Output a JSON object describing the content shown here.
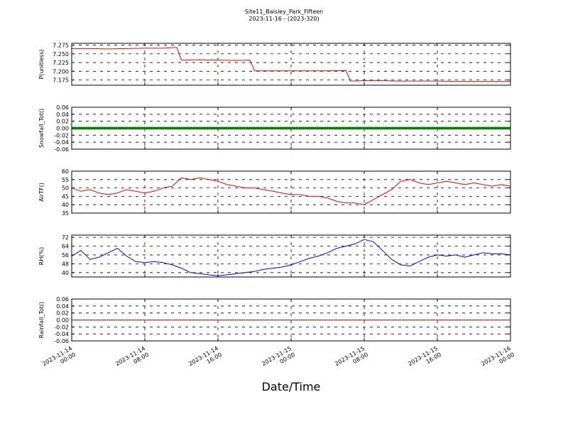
{
  "figure": {
    "title_line1": "Site11_Baisley_Park_Fifteen",
    "title_line2": "2023-11-16 - (2023-320)",
    "xlabel": "Date/Time",
    "xticks": [
      {
        "line1": "2023-11-14",
        "line2": "00:00"
      },
      {
        "line1": "2023-11-14",
        "line2": "08:00"
      },
      {
        "line1": "2023-11-14",
        "line2": "16:00"
      },
      {
        "line1": "2023-11-15",
        "line2": "00:00"
      },
      {
        "line1": "2023-11-15",
        "line2": "08:00"
      },
      {
        "line1": "2023-11-15",
        "line2": "16:00"
      },
      {
        "line1": "2023-11-16",
        "line2": "00:00"
      }
    ]
  },
  "chart_data": [
    {
      "type": "line",
      "ylabel": "P(unitless)",
      "color": "#ff0000",
      "marker": "none",
      "ylim": [
        7.16,
        7.28
      ],
      "yticks": [
        "7.175",
        "7.200",
        "7.225",
        "7.250",
        "7.275"
      ],
      "yticks_values": [
        7.175,
        7.2,
        7.225,
        7.25,
        7.275
      ],
      "xlim_hours": [
        0,
        48
      ],
      "x_hours": [
        0,
        2,
        4,
        6,
        8,
        10,
        11.5,
        12,
        14,
        16,
        18,
        19.5,
        20,
        22,
        24,
        26,
        28,
        30,
        30.5,
        32,
        34,
        36,
        38,
        40,
        42,
        44,
        46,
        48
      ],
      "values": [
        7.265,
        7.265,
        7.264,
        7.265,
        7.266,
        7.266,
        7.268,
        7.232,
        7.233,
        7.232,
        7.231,
        7.232,
        7.201,
        7.201,
        7.201,
        7.201,
        7.201,
        7.202,
        7.172,
        7.173,
        7.173,
        7.172,
        7.172,
        7.172,
        7.171,
        7.171,
        7.171,
        7.171
      ]
    },
    {
      "type": "line",
      "ylabel": "Snowfall_Tot()",
      "color": "#008000",
      "marker": "circle",
      "ylim": [
        -0.06,
        0.06
      ],
      "yticks": [
        "-0.06",
        "-0.04",
        "-0.02",
        "0.00",
        "0.02",
        "0.04",
        "0.06"
      ],
      "yticks_values": [
        -0.06,
        -0.04,
        -0.02,
        0,
        0.02,
        0.04,
        0.06
      ],
      "xlim_hours": [
        0,
        48
      ],
      "x_hours": [
        0,
        48
      ],
      "values": [
        0,
        0
      ]
    },
    {
      "type": "line",
      "ylabel": "AirTF()",
      "color": "#ff0000",
      "marker": "none",
      "ylim": [
        35,
        60
      ],
      "yticks": [
        "35",
        "40",
        "45",
        "50",
        "55",
        "60"
      ],
      "yticks_values": [
        35,
        40,
        45,
        50,
        55,
        60
      ],
      "xlim_hours": [
        0,
        48
      ],
      "x_hours": [
        0,
        1,
        2,
        3,
        4,
        5,
        6,
        7,
        8,
        9,
        10,
        11,
        12,
        13,
        14,
        15,
        16,
        17,
        18,
        19,
        20,
        21,
        22,
        23,
        24,
        25,
        26,
        27,
        28,
        29,
        30,
        31,
        32,
        33,
        34,
        35,
        36,
        37,
        38,
        39,
        40,
        41,
        42,
        43,
        44,
        45,
        46,
        47,
        48
      ],
      "values": [
        50,
        48,
        49,
        47,
        46,
        47,
        49,
        48,
        47,
        48,
        50,
        51,
        56,
        55,
        56,
        55,
        54,
        52,
        51,
        50,
        50,
        49,
        48,
        47,
        46,
        46,
        45,
        45,
        44,
        42,
        41,
        41,
        40,
        43,
        46,
        49,
        54,
        55,
        53,
        52,
        53,
        54,
        53,
        52,
        53,
        52,
        51,
        52,
        51
      ]
    },
    {
      "type": "line",
      "ylabel": "RH(%)",
      "color": "#0000ff",
      "marker": "none",
      "ylim": [
        36,
        74
      ],
      "yticks": [
        "40",
        "48",
        "56",
        "64",
        "72"
      ],
      "yticks_values": [
        40,
        48,
        56,
        64,
        72
      ],
      "xlim_hours": [
        0,
        48
      ],
      "x_hours": [
        0,
        1,
        2,
        3,
        4,
        5,
        6,
        7,
        8,
        9,
        10,
        11,
        12,
        13,
        14,
        15,
        16,
        17,
        18,
        19,
        20,
        21,
        22,
        23,
        24,
        25,
        26,
        27,
        28,
        29,
        30,
        31,
        32,
        33,
        34,
        35,
        36,
        37,
        38,
        39,
        40,
        41,
        42,
        43,
        44,
        45,
        46,
        47,
        48
      ],
      "values": [
        55,
        60,
        52,
        54,
        58,
        62,
        55,
        50,
        49,
        50,
        49,
        47,
        44,
        40,
        39,
        38,
        37,
        38,
        39,
        40,
        41,
        43,
        44,
        45,
        47,
        50,
        53,
        55,
        58,
        62,
        64,
        66,
        70,
        68,
        60,
        52,
        47,
        46,
        50,
        54,
        56,
        55,
        56,
        54,
        56,
        58,
        57,
        57,
        56
      ]
    },
    {
      "type": "line",
      "ylabel": "Rainfall_Tot()",
      "color": "#ff0000",
      "marker": "none",
      "ylim": [
        -0.06,
        0.06
      ],
      "yticks": [
        "-0.06",
        "-0.04",
        "-0.02",
        "0.00",
        "0.02",
        "0.04",
        "0.06"
      ],
      "yticks_values": [
        -0.06,
        -0.04,
        -0.02,
        0,
        0.02,
        0.04,
        0.06
      ],
      "xlim_hours": [
        0,
        48
      ],
      "x_hours": [
        0,
        48
      ],
      "values": [
        0,
        0
      ]
    }
  ]
}
